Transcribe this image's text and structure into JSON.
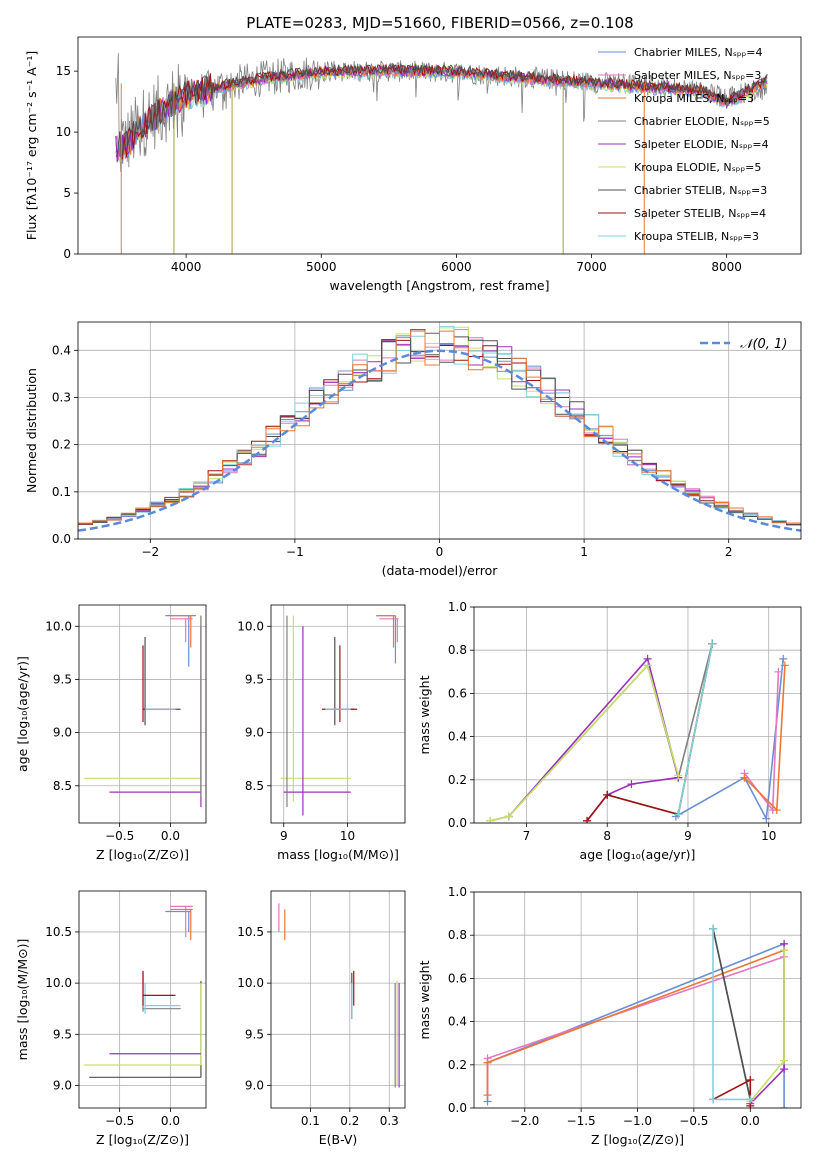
{
  "title": "PLATE=0283, MJD=51660, FIBERID=0566, z=0.108",
  "colors": {
    "chabrier_miles": "#6a8fd6",
    "salpeter_miles": "#e377c2",
    "kroupa_miles": "#ee7733",
    "chabrier_elodie": "#808080",
    "salpeter_elodie": "#9b30b8",
    "kroupa_elodie": "#c7e06b",
    "chabrier_stelib": "#505050",
    "salpeter_stelib": "#a01010",
    "kroupa_stelib": "#7fd3da"
  },
  "chart_data": [
    {
      "type": "line",
      "id": "spectrum",
      "xlabel": "wavelength [Angstrom, rest frame]",
      "ylabel": "Flux [fλ10⁻¹⁷ erg cm⁻² s⁻¹ A⁻¹]",
      "xlim": [
        3200,
        8550
      ],
      "ylim": [
        0,
        17.8
      ],
      "xticks": [
        "4000",
        "5000",
        "6000",
        "7000",
        "8000"
      ],
      "yticks": [
        "0",
        "5",
        "10",
        "15"
      ],
      "legend_position": "right",
      "legend": [
        "Chabrier MILES, Nₛₚₚ=4",
        "Salpeter MILES, Nₛₚₚ=3",
        "Kroupa MILES, Nₛₚₚ=3",
        "Chabrier ELODIE, Nₛₚₚ=5",
        "Salpeter ELODIE, Nₛₚₚ=4",
        "Kroupa ELODIE, Nₛₚₚ=5",
        "Chabrier STELIB, Nₛₚₚ=3",
        "Salpeter STELIB, Nₛₚₚ=4",
        "Kroupa STELIB, Nₛₚₚ=3"
      ],
      "data_continuum": [
        [
          3500,
          8.5
        ],
        [
          3700,
          11
        ],
        [
          4000,
          13.2
        ],
        [
          4500,
          14.3
        ],
        [
          5000,
          15.0
        ],
        [
          5500,
          15.0
        ],
        [
          6000,
          14.9
        ],
        [
          6500,
          14.5
        ],
        [
          7000,
          14.1
        ],
        [
          7500,
          13.8
        ],
        [
          8000,
          13.0
        ],
        [
          8300,
          13.5
        ]
      ],
      "model_continuum": [
        [
          3480,
          8.6
        ],
        [
          3560,
          8.8
        ],
        [
          3650,
          10.2
        ],
        [
          3800,
          11.5
        ],
        [
          4000,
          13.0
        ],
        [
          4300,
          13.8
        ],
        [
          4600,
          14.4
        ],
        [
          5000,
          14.9
        ],
        [
          5500,
          15.0
        ],
        [
          6000,
          14.9
        ],
        [
          6500,
          14.4
        ],
        [
          7000,
          14.0
        ],
        [
          7500,
          13.6
        ],
        [
          7800,
          13.4
        ],
        [
          8000,
          12.4
        ],
        [
          8100,
          13.0
        ],
        [
          8300,
          14.2
        ]
      ],
      "spikes": [
        [
          3520,
          0
        ],
        [
          3910,
          0
        ],
        [
          4340,
          0
        ],
        [
          6790,
          0
        ],
        [
          7390,
          0
        ]
      ]
    },
    {
      "type": "bar",
      "id": "residuals",
      "xlabel": "(data-model)/error",
      "ylabel": "Normed distribution",
      "xlim": [
        -2.5,
        2.5
      ],
      "ylim": [
        0,
        0.46
      ],
      "xticks": [
        "−2",
        "−1",
        "0",
        "1",
        "2"
      ],
      "yticks": [
        "0.0",
        "0.1",
        "0.2",
        "0.3",
        "0.4"
      ],
      "legend": [
        "𝒩(0, 1)"
      ],
      "legend_position": "top-right",
      "bin_width": 0.1
    },
    {
      "type": "scatter",
      "id": "age-vs-Z",
      "xlabel": "Z [log₁₀(Z/Z⊙)]",
      "ylabel": "age  [log₁₀(age/yr)]",
      "xlim": [
        -0.9,
        0.35
      ],
      "ylim": [
        8.15,
        10.2
      ],
      "xticks": [
        "−0.5",
        "0.0"
      ],
      "yticks": [
        "8.5",
        "9.0",
        "9.5",
        "10.0"
      ]
    },
    {
      "type": "scatter",
      "id": "age-vs-mass",
      "xlabel": "mass [log₁₀(M/M⊙)]",
      "ylabel": "",
      "xlim": [
        8.8,
        10.9
      ],
      "ylim": [
        8.15,
        10.2
      ],
      "xticks": [
        "9",
        "10"
      ],
      "yticks": [
        "8.5",
        "9.0",
        "9.5",
        "10.0"
      ]
    },
    {
      "type": "line",
      "id": "weight-vs-age",
      "xlabel": "age  [log₁₀(age/yr)]",
      "ylabel": "mass weight",
      "xlim": [
        6.35,
        10.4
      ],
      "ylim": [
        0,
        1
      ],
      "xticks": [
        "7",
        "8",
        "9",
        "10"
      ],
      "yticks": [
        "0.0",
        "0.2",
        "0.4",
        "0.6",
        "0.8",
        "1.0"
      ],
      "series": [
        {
          "key": "chabrier_miles",
          "points": [
            [
              8.85,
              0.03
            ],
            [
              9.7,
              0.21
            ],
            [
              9.97,
              0.02
            ],
            [
              10.18,
              0.76
            ]
          ]
        },
        {
          "key": "salpeter_miles",
          "points": [
            [
              9.7,
              0.23
            ],
            [
              10.05,
              0.06
            ],
            [
              10.12,
              0.7
            ]
          ]
        },
        {
          "key": "kroupa_miles",
          "points": [
            [
              9.7,
              0.21
            ],
            [
              10.1,
              0.06
            ],
            [
              10.2,
              0.73
            ]
          ]
        },
        {
          "key": "chabrier_elodie",
          "points": [
            [
              6.55,
              0.01
            ],
            [
              6.78,
              0.03
            ],
            [
              8.5,
              0.73
            ],
            [
              8.88,
              0.21
            ],
            [
              9.3,
              0.83
            ]
          ]
        },
        {
          "key": "salpeter_elodie",
          "points": [
            [
              6.78,
              0.03
            ],
            [
              8.5,
              0.76
            ],
            [
              8.88,
              0.21
            ],
            [
              8.3,
              0.18
            ],
            [
              8.0,
              0.13
            ],
            [
              7.75,
              0.01
            ]
          ]
        },
        {
          "key": "kroupa_elodie",
          "points": [
            [
              6.55,
              0.01
            ],
            [
              6.78,
              0.03
            ],
            [
              8.5,
              0.73
            ],
            [
              8.88,
              0.22
            ]
          ]
        },
        {
          "key": "chabrier_stelib",
          "points": [
            [
              8.0,
              0.13
            ],
            [
              8.88,
              0.04
            ],
            [
              9.3,
              0.83
            ]
          ]
        },
        {
          "key": "salpeter_stelib",
          "points": [
            [
              7.75,
              0.01
            ],
            [
              8.0,
              0.13
            ],
            [
              8.88,
              0.04
            ],
            [
              9.3,
              0.83
            ]
          ]
        },
        {
          "key": "kroupa_stelib",
          "points": [
            [
              8.88,
              0.04
            ],
            [
              9.3,
              0.83
            ]
          ]
        }
      ]
    },
    {
      "type": "scatter",
      "id": "mass-vs-Z",
      "xlabel": "Z [log₁₀(Z/Z⊙)]",
      "ylabel": "mass [log₁₀(M/M⊙)]",
      "xlim": [
        -0.9,
        0.35
      ],
      "ylim": [
        8.78,
        10.9
      ],
      "xticks": [
        "−0.5",
        "0.0"
      ],
      "yticks": [
        "9.0",
        "9.5",
        "10.0",
        "10.5"
      ]
    },
    {
      "type": "scatter",
      "id": "mass-vs-ebv",
      "xlabel": "E(B-V)",
      "ylabel": "",
      "xlim": [
        0.0,
        0.34
      ],
      "ylim": [
        8.78,
        10.9
      ],
      "xticks": [
        "0.1",
        "0.2",
        "0.3"
      ],
      "yticks": [
        "9.0",
        "9.5",
        "10.0",
        "10.5"
      ]
    },
    {
      "type": "line",
      "id": "weight-vs-Z",
      "xlabel": "Z [log₁₀(Z/Z⊙)]",
      "ylabel": "mass weight",
      "xlim": [
        -2.45,
        0.45
      ],
      "ylim": [
        0,
        1
      ],
      "xticks": [
        "−2.0",
        "−1.5",
        "−1.0",
        "−0.5",
        "0.0"
      ],
      "yticks": [
        "0.0",
        "0.2",
        "0.4",
        "0.6",
        "0.8",
        "1.0"
      ],
      "series": [
        {
          "key": "chabrier_miles",
          "points": [
            [
              -2.33,
              0.03
            ],
            [
              -2.33,
              0.21
            ],
            [
              0.3,
              0.76
            ],
            [
              0.3,
              0.0
            ]
          ]
        },
        {
          "key": "salpeter_miles",
          "points": [
            [
              -2.33,
              0.06
            ],
            [
              -2.33,
              0.23
            ],
            [
              0.3,
              0.7
            ]
          ]
        },
        {
          "key": "kroupa_miles",
          "points": [
            [
              -2.33,
              0.06
            ],
            [
              -2.33,
              0.21
            ],
            [
              0.3,
              0.73
            ]
          ]
        },
        {
          "key": "chabrier_elodie",
          "points": [
            [
              -0.33,
              0.83
            ],
            [
              0.0,
              0.04
            ]
          ]
        },
        {
          "key": "salpeter_elodie",
          "points": [
            [
              0.0,
              0.02
            ],
            [
              0.3,
              0.18
            ],
            [
              0.3,
              0.76
            ]
          ]
        },
        {
          "key": "kroupa_elodie",
          "points": [
            [
              0.0,
              0.03
            ],
            [
              0.3,
              0.22
            ],
            [
              0.3,
              0.73
            ]
          ]
        },
        {
          "key": "chabrier_stelib",
          "points": [
            [
              -0.33,
              0.83
            ],
            [
              0.0,
              0.04
            ]
          ]
        },
        {
          "key": "salpeter_stelib",
          "points": [
            [
              -0.33,
              0.04
            ],
            [
              0.0,
              0.13
            ],
            [
              0.0,
              0.01
            ]
          ]
        },
        {
          "key": "kroupa_stelib",
          "points": [
            [
              -0.33,
              0.83
            ],
            [
              -0.33,
              0.04
            ],
            [
              0.0,
              0.04
            ]
          ]
        }
      ]
    }
  ]
}
